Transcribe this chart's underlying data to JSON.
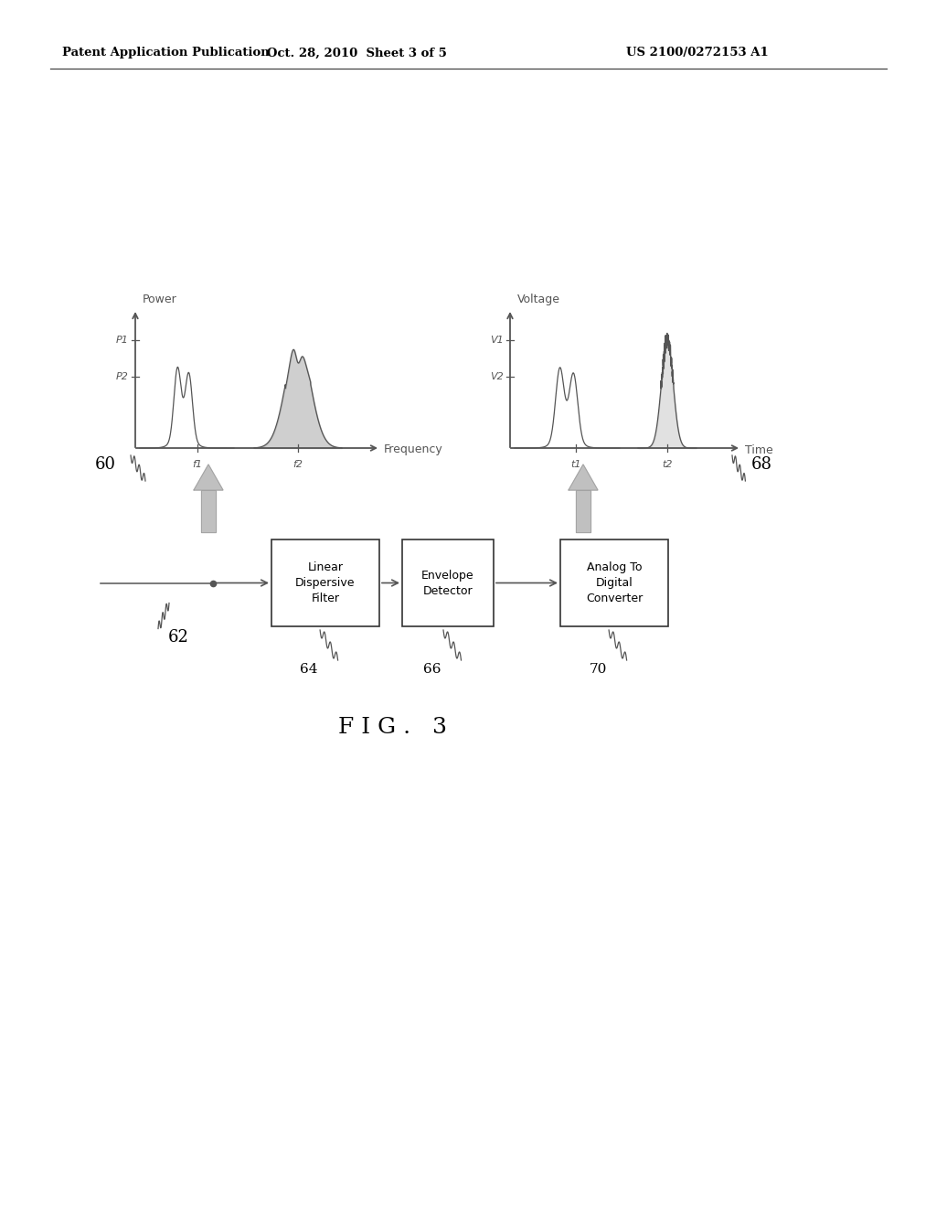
{
  "bg_color": "#ffffff",
  "header_left": "Patent Application Publication",
  "header_center": "Oct. 28, 2010  Sheet 3 of 5",
  "header_right": "US 2100/0272153 A1",
  "figure_label": "F I G .   3",
  "box_labels": [
    "Linear\nDispersive\nFilter",
    "Envelope\nDetector",
    "Analog To\nDigital\nConverter"
  ],
  "box_numbers": [
    "64",
    "66",
    "70"
  ],
  "left_graph_ylabel": "Power",
  "left_graph_xlabel": "Frequency",
  "left_graph_p1": "P1",
  "left_graph_p2": "P2",
  "left_graph_f1": "f1",
  "left_graph_f2": "f2",
  "right_graph_ylabel": "Voltage",
  "right_graph_xlabel": "Time",
  "right_graph_v1": "V1",
  "right_graph_v2": "V2",
  "right_graph_t1": "t1",
  "right_graph_t2": "t2",
  "label_60": "60",
  "label_62": "62",
  "label_68": "68",
  "graph_color": "#555555",
  "text_color": "#000000"
}
